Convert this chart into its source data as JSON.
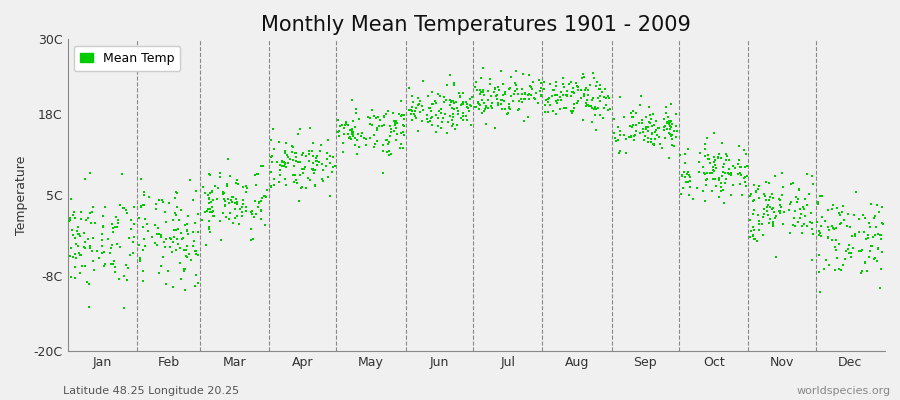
{
  "title": "Monthly Mean Temperatures 1901 - 2009",
  "ylabel": "Temperature",
  "xlabel_bottom_left": "Latitude 48.25 Longitude 20.25",
  "xlabel_bottom_right": "worldspecies.org",
  "legend_label": "Mean Temp",
  "dot_color": "#00cc00",
  "bg_color": "#f0f0f0",
  "plot_bg_color": "#f0f0f0",
  "ylim": [
    -20,
    30
  ],
  "yticks": [
    -20,
    -8,
    5,
    18,
    30
  ],
  "ytick_labels": [
    "-20C",
    "-8C",
    "5C",
    "18C",
    "30C"
  ],
  "months": [
    "Jan",
    "Feb",
    "Mar",
    "Apr",
    "May",
    "Jun",
    "Jul",
    "Aug",
    "Sep",
    "Oct",
    "Nov",
    "Dec"
  ],
  "monthly_means": [
    -2.5,
    -2.0,
    4.0,
    10.0,
    15.5,
    19.0,
    21.0,
    20.5,
    15.5,
    9.0,
    2.5,
    -1.5
  ],
  "monthly_stds": [
    4.0,
    4.0,
    2.8,
    2.2,
    2.0,
    1.8,
    1.8,
    1.8,
    2.0,
    2.2,
    2.8,
    3.5
  ],
  "n_years": 109,
  "seed": 42,
  "marker_size": 4,
  "title_fontsize": 15,
  "axis_fontsize": 9,
  "tick_fontsize": 9,
  "legend_fontsize": 9,
  "watermark_fontsize": 8,
  "month_days": [
    31,
    28,
    31,
    30,
    31,
    30,
    31,
    31,
    30,
    31,
    30,
    31
  ],
  "total_days": 365
}
